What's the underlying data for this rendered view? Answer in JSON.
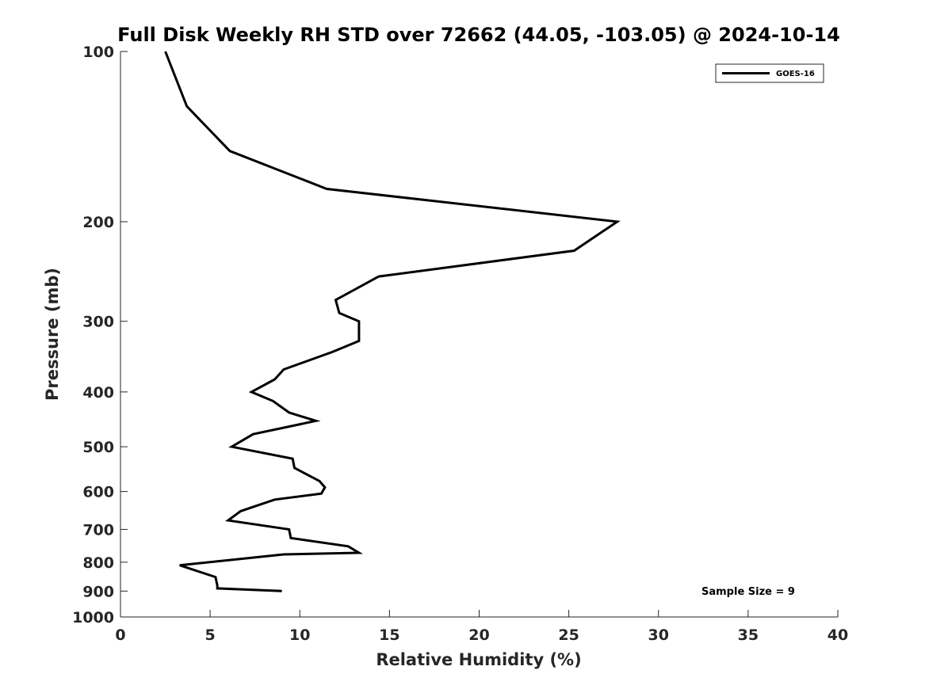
{
  "chart_data": {
    "type": "line",
    "title": "Full Disk Weekly RH STD over 72662 (44.05, -103.05) @ 2024-10-14",
    "xlabel": "Relative Humidity (%)",
    "ylabel": "Pressure (mb)",
    "xlim": [
      0,
      40
    ],
    "ylim": [
      100,
      1000
    ],
    "y_scale": "log",
    "y_inverted": true,
    "x_ticks": [
      "0",
      "5",
      "10",
      "15",
      "20",
      "25",
      "30",
      "35",
      "40"
    ],
    "y_ticks": [
      "100",
      "200",
      "300",
      "400",
      "500",
      "600",
      "700",
      "800",
      "900",
      "1000"
    ],
    "grid": false,
    "legend_position": "top-right",
    "annotation": "Sample Size = 9",
    "series": [
      {
        "name": "GOES-16",
        "color": "#000000",
        "points": [
          {
            "x": 2.5,
            "y": 100
          },
          {
            "x": 3.7,
            "y": 125
          },
          {
            "x": 6.1,
            "y": 150
          },
          {
            "x": 11.5,
            "y": 175
          },
          {
            "x": 27.7,
            "y": 200
          },
          {
            "x": 25.3,
            "y": 225
          },
          {
            "x": 14.4,
            "y": 250
          },
          {
            "x": 12.0,
            "y": 275
          },
          {
            "x": 12.2,
            "y": 290
          },
          {
            "x": 13.3,
            "y": 300
          },
          {
            "x": 13.3,
            "y": 325
          },
          {
            "x": 11.8,
            "y": 340
          },
          {
            "x": 9.1,
            "y": 365
          },
          {
            "x": 8.6,
            "y": 380
          },
          {
            "x": 7.3,
            "y": 400
          },
          {
            "x": 8.5,
            "y": 415
          },
          {
            "x": 9.4,
            "y": 435
          },
          {
            "x": 10.9,
            "y": 450
          },
          {
            "x": 7.4,
            "y": 475
          },
          {
            "x": 6.2,
            "y": 500
          },
          {
            "x": 9.6,
            "y": 525
          },
          {
            "x": 9.7,
            "y": 545
          },
          {
            "x": 11.1,
            "y": 575
          },
          {
            "x": 11.4,
            "y": 590
          },
          {
            "x": 11.2,
            "y": 605
          },
          {
            "x": 8.6,
            "y": 620
          },
          {
            "x": 6.7,
            "y": 650
          },
          {
            "x": 6.0,
            "y": 675
          },
          {
            "x": 9.4,
            "y": 700
          },
          {
            "x": 9.5,
            "y": 725
          },
          {
            "x": 12.7,
            "y": 750
          },
          {
            "x": 13.3,
            "y": 770
          },
          {
            "x": 9.1,
            "y": 775
          },
          {
            "x": 3.3,
            "y": 810
          },
          {
            "x": 5.3,
            "y": 850
          },
          {
            "x": 5.4,
            "y": 880
          },
          {
            "x": 5.4,
            "y": 890
          },
          {
            "x": 9.0,
            "y": 900
          }
        ]
      }
    ]
  }
}
